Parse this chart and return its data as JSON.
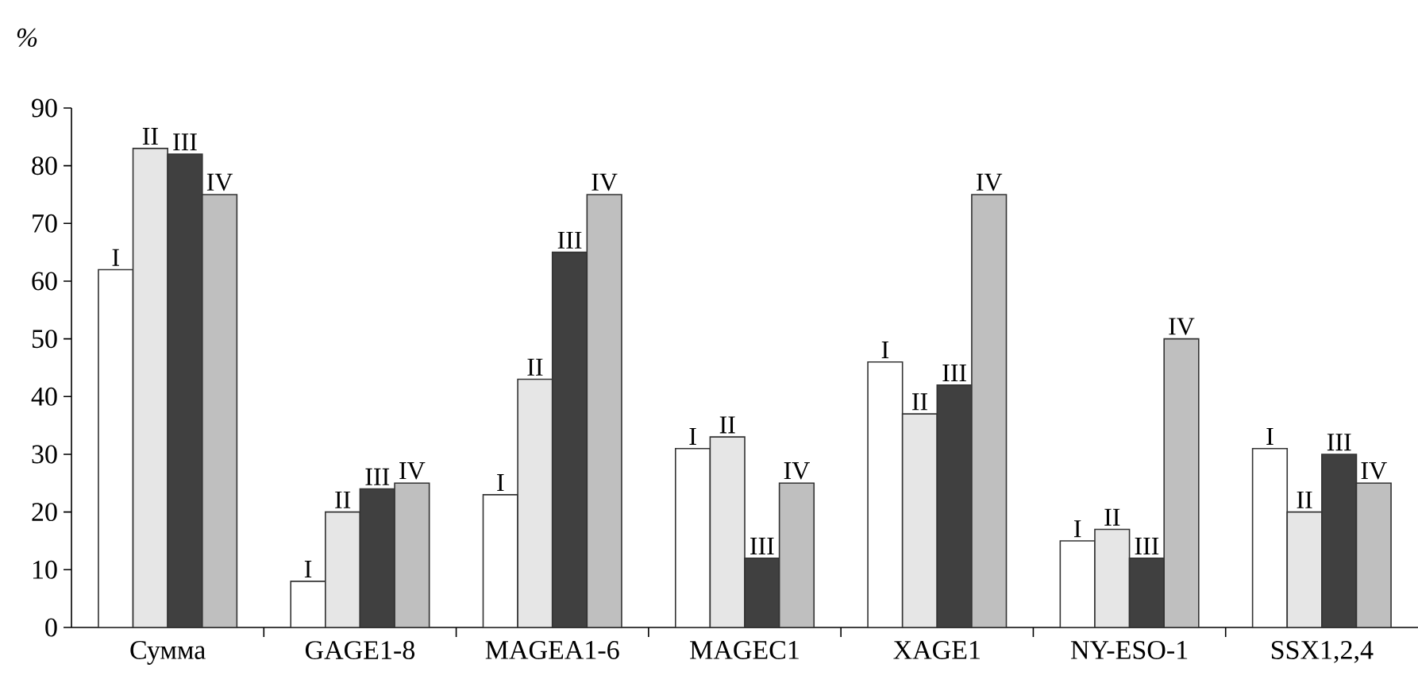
{
  "chart_data": {
    "type": "bar",
    "ylabel": "%",
    "categories": [
      "Сумма",
      "GAGE1-8",
      "MAGEA1-6",
      "MAGEC1",
      "XAGE1",
      "NY-ESO-1",
      "SSX1,2,4"
    ],
    "series": [
      {
        "name": "I",
        "color": "#ffffff",
        "values": [
          62,
          8,
          23,
          31,
          46,
          15,
          31
        ]
      },
      {
        "name": "II",
        "color": "#e6e6e6",
        "values": [
          83,
          20,
          43,
          33,
          37,
          17,
          20
        ]
      },
      {
        "name": "III",
        "color": "#404040",
        "values": [
          82,
          24,
          65,
          12,
          42,
          12,
          30
        ]
      },
      {
        "name": "IV",
        "color": "#bfbfbf",
        "values": [
          75,
          25,
          75,
          25,
          75,
          50,
          25
        ]
      }
    ],
    "ylim": [
      0,
      90
    ],
    "yticks": [
      0,
      10,
      20,
      30,
      40,
      50,
      60,
      70,
      80,
      90
    ],
    "grid": false
  }
}
